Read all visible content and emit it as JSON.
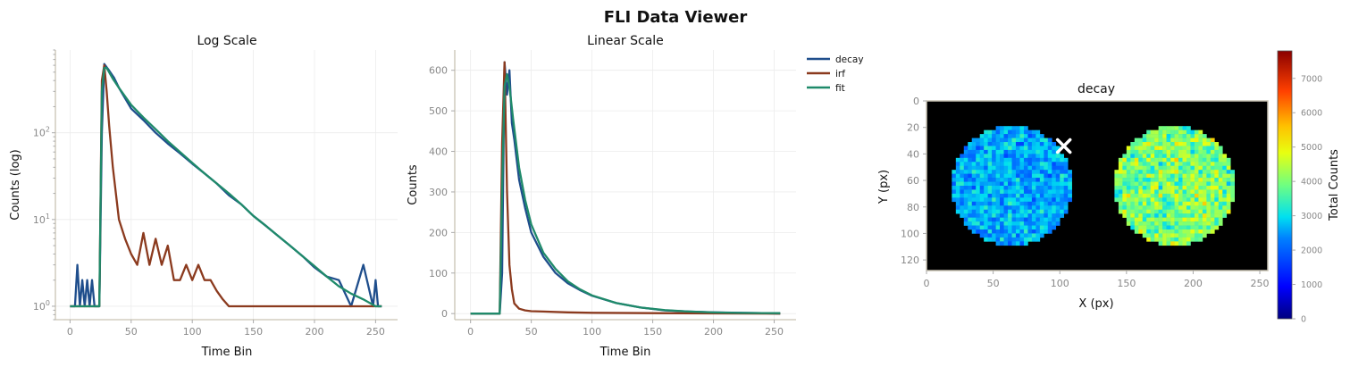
{
  "figure": {
    "title": "FLI Data Viewer"
  },
  "colors": {
    "decay": "#1f4e8c",
    "irf": "#8b3a1e",
    "fit": "#1f8a6a"
  },
  "chart_data": [
    {
      "type": "line",
      "title": "Log Scale",
      "xlabel": "Time Bin",
      "ylabel": "Counts (log)",
      "yscale": "log",
      "xlim": [
        -12,
        268
      ],
      "ylim": [
        0.7,
        900
      ],
      "xticks": [
        0,
        50,
        100,
        150,
        200,
        250
      ],
      "yticks": [
        1,
        10,
        100
      ],
      "yticklabels": [
        "10",
        "10",
        "10"
      ],
      "ytickexp": [
        "0",
        "1",
        "2"
      ],
      "grid": true,
      "series": [
        {
          "name": "decay",
          "x": [
            0,
            4,
            6,
            8,
            10,
            12,
            14,
            16,
            18,
            20,
            24,
            26,
            28,
            32,
            36,
            40,
            50,
            60,
            70,
            80,
            90,
            100,
            110,
            120,
            130,
            140,
            150,
            160,
            170,
            180,
            190,
            200,
            210,
            220,
            230,
            240,
            248,
            250,
            252,
            255
          ],
          "values": [
            1,
            1,
            3,
            1,
            2,
            1,
            2,
            1,
            2,
            1,
            1,
            100,
            620,
            520,
            430,
            330,
            190,
            140,
            100,
            75,
            58,
            44,
            34,
            26,
            19,
            15,
            11,
            8.5,
            6.5,
            5,
            3.8,
            2.8,
            2.2,
            2,
            1,
            3,
            1,
            2,
            1,
            1
          ]
        },
        {
          "name": "irf",
          "x": [
            0,
            20,
            24,
            26,
            28,
            30,
            32,
            35,
            40,
            45,
            50,
            55,
            60,
            65,
            70,
            75,
            80,
            85,
            90,
            95,
            100,
            105,
            110,
            115,
            120,
            125,
            130,
            140,
            150,
            200,
            255
          ],
          "values": [
            1,
            1,
            1,
            400,
            600,
            300,
            120,
            40,
            10,
            6,
            4,
            3,
            7,
            3,
            6,
            3,
            5,
            2,
            2,
            3,
            2,
            3,
            2,
            2,
            1.5,
            1.2,
            1,
            1,
            1,
            1,
            1
          ]
        },
        {
          "name": "fit",
          "x": [
            0,
            24,
            26,
            28,
            30,
            35,
            40,
            50,
            60,
            70,
            80,
            90,
            100,
            110,
            120,
            130,
            140,
            150,
            160,
            170,
            180,
            190,
            200,
            210,
            220,
            230,
            240,
            250,
            255
          ],
          "values": [
            1,
            1,
            300,
            560,
            560,
            420,
            330,
            210,
            150,
            110,
            80,
            60,
            45,
            34,
            26,
            20,
            15,
            11,
            8.5,
            6.5,
            5,
            3.8,
            2.9,
            2.2,
            1.7,
            1.4,
            1.2,
            1,
            1
          ]
        }
      ]
    },
    {
      "type": "line",
      "title": "Linear Scale",
      "xlabel": "Time Bin",
      "ylabel": "Counts",
      "xlim": [
        -13,
        268
      ],
      "ylim": [
        -15,
        650
      ],
      "xticks": [
        0,
        50,
        100,
        150,
        200,
        250
      ],
      "yticks": [
        0,
        100,
        200,
        300,
        400,
        500,
        600
      ],
      "grid": true,
      "legend": "upper-right-outside",
      "series": [
        {
          "name": "decay",
          "x": [
            0,
            20,
            24,
            26,
            28,
            30,
            32,
            34,
            36,
            40,
            45,
            50,
            60,
            70,
            80,
            90,
            100,
            120,
            140,
            160,
            180,
            200,
            220,
            240,
            255
          ],
          "values": [
            0,
            0,
            0,
            100,
            620,
            540,
            600,
            470,
            430,
            330,
            260,
            200,
            140,
            100,
            75,
            58,
            44,
            26,
            15,
            8,
            5,
            3,
            2,
            1,
            0
          ]
        },
        {
          "name": "irf",
          "x": [
            0,
            20,
            24,
            26,
            28,
            30,
            32,
            34,
            36,
            40,
            45,
            50,
            60,
            80,
            100,
            150,
            255
          ],
          "values": [
            0,
            0,
            0,
            420,
            620,
            300,
            120,
            60,
            25,
            12,
            8,
            6,
            5,
            3,
            2,
            1,
            0
          ]
        },
        {
          "name": "fit",
          "x": [
            0,
            24,
            26,
            28,
            30,
            32,
            35,
            40,
            45,
            50,
            60,
            70,
            80,
            90,
            100,
            120,
            140,
            160,
            180,
            200,
            220,
            240,
            255
          ],
          "values": [
            0,
            0,
            300,
            560,
            590,
            560,
            480,
            360,
            280,
            220,
            150,
            110,
            80,
            60,
            45,
            26,
            15,
            8.5,
            5,
            2.9,
            1.7,
            1.2,
            1
          ]
        }
      ]
    },
    {
      "type": "heatmap",
      "title": "decay",
      "xlabel": "X (px)",
      "ylabel": "Y (px)",
      "xlim": [
        0,
        256
      ],
      "ylim": [
        128,
        0
      ],
      "xticks": [
        0,
        50,
        100,
        150,
        200,
        250
      ],
      "yticks": [
        0,
        20,
        40,
        60,
        80,
        100,
        120
      ],
      "colorbar": {
        "label": "Total Counts",
        "range": [
          0,
          7800
        ],
        "ticks": [
          0,
          1000,
          2000,
          3000,
          4000,
          5000,
          6000,
          7000
        ]
      },
      "discs": [
        {
          "cx": 64,
          "cy": 64,
          "r": 45,
          "mean_counts": 2600
        },
        {
          "cx": 186,
          "cy": 64,
          "r": 45,
          "mean_counts": 4000
        }
      ],
      "marker": {
        "x": 103,
        "y": 34,
        "symbol": "x"
      }
    }
  ]
}
